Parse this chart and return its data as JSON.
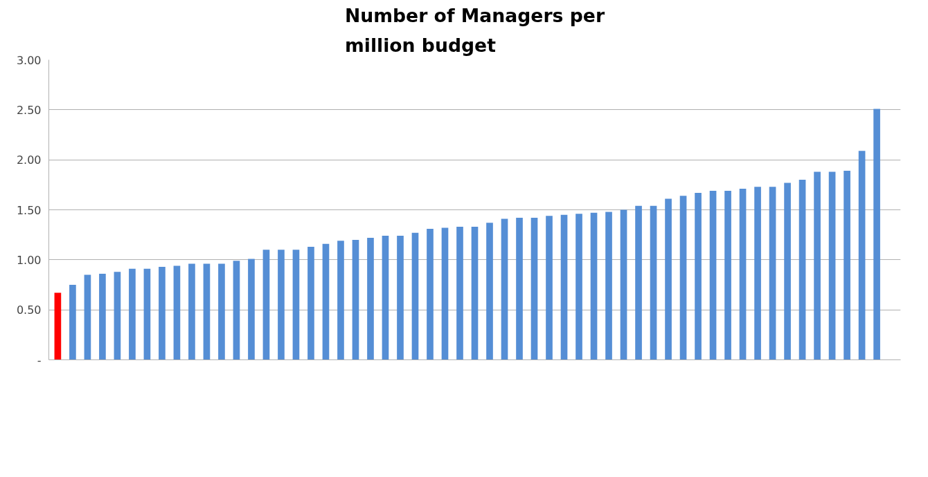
{
  "chart_data": {
    "type": "bar",
    "title": "Number of Managers per\nmillion budget",
    "categories": [
      null,
      null,
      null,
      null,
      null,
      null,
      null,
      null,
      null,
      null,
      null,
      null,
      null,
      null,
      null,
      null,
      null,
      null,
      null,
      null,
      null,
      null,
      null,
      null,
      null,
      null,
      null,
      null,
      null,
      null,
      null,
      null,
      null,
      null,
      null,
      null,
      null,
      null,
      null,
      null,
      null,
      null,
      null,
      null,
      null,
      null,
      null,
      null,
      null,
      null,
      null,
      null,
      null,
      null,
      null,
      null,
      null
    ],
    "values": [
      0.67,
      0.75,
      0.85,
      0.86,
      0.88,
      0.91,
      0.91,
      0.93,
      0.94,
      0.96,
      0.96,
      0.96,
      0.99,
      1.01,
      1.1,
      1.1,
      1.1,
      1.13,
      1.16,
      1.19,
      1.2,
      1.22,
      1.24,
      1.24,
      1.27,
      1.31,
      1.32,
      1.33,
      1.33,
      1.37,
      1.41,
      1.42,
      1.42,
      1.44,
      1.45,
      1.46,
      1.47,
      1.48,
      1.5,
      1.54,
      1.54,
      1.61,
      1.64,
      1.67,
      1.69,
      1.69,
      1.71,
      1.73,
      1.73,
      1.77,
      1.8,
      1.88,
      1.88,
      1.89,
      2.09,
      2.51,
      null
    ],
    "colors": [
      "#ff0000",
      "#558ed5",
      "#558ed5",
      "#558ed5",
      "#558ed5",
      "#558ed5",
      "#558ed5",
      "#558ed5",
      "#558ed5",
      "#558ed5",
      "#558ed5",
      "#558ed5",
      "#558ed5",
      "#558ed5",
      "#558ed5",
      "#558ed5",
      "#558ed5",
      "#558ed5",
      "#558ed5",
      "#558ed5",
      "#558ed5",
      "#558ed5",
      "#558ed5",
      "#558ed5",
      "#558ed5",
      "#558ed5",
      "#558ed5",
      "#558ed5",
      "#558ed5",
      "#558ed5",
      "#558ed5",
      "#558ed5",
      "#558ed5",
      "#558ed5",
      "#558ed5",
      "#558ed5",
      "#558ed5",
      "#558ed5",
      "#558ed5",
      "#558ed5",
      "#558ed5",
      "#558ed5",
      "#558ed5",
      "#558ed5",
      "#558ed5",
      "#558ed5",
      "#558ed5",
      "#558ed5",
      "#558ed5",
      "#558ed5",
      "#558ed5",
      "#558ed5",
      "#558ed5",
      "#558ed5",
      "#558ed5",
      "#558ed5",
      "#558ed5"
    ],
    "ylim": [
      0,
      3
    ],
    "yticks": [
      {
        "value": 0,
        "label": "-"
      },
      {
        "value": 0.5,
        "label": "0.50"
      },
      {
        "value": 1,
        "label": "1.00"
      },
      {
        "value": 1.5,
        "label": "1.50"
      },
      {
        "value": 2,
        "label": "2.00"
      },
      {
        "value": 2.5,
        "label": "2.50"
      },
      {
        "value": 3,
        "label": "3.00"
      }
    ],
    "grid": "y"
  }
}
